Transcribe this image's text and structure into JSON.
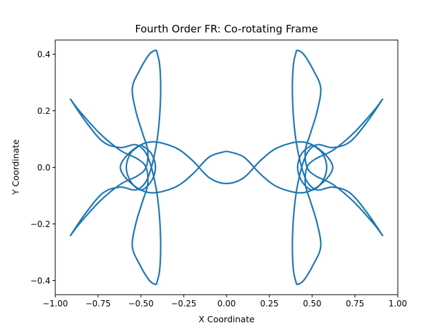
{
  "chart_data": {
    "type": "line",
    "title": "Fourth Order FR: Co-rotating Frame",
    "xlabel": "X Coordinate",
    "ylabel": "Y Coordinate",
    "xlim": [
      -1.0,
      1.0
    ],
    "ylim": [
      -0.45,
      0.45
    ],
    "xticks": [
      -1.0,
      -0.75,
      -0.5,
      -0.25,
      0.0,
      0.25,
      0.5,
      0.75,
      1.0
    ],
    "xtick_labels": [
      "−1.00",
      "−0.75",
      "−0.50",
      "−0.25",
      "0.00",
      "0.25",
      "0.50",
      "0.75",
      "1.00"
    ],
    "yticks": [
      -0.4,
      -0.2,
      0.0,
      0.2,
      0.4
    ],
    "ytick_labels": [
      "−0.4",
      "−0.2",
      "0.0",
      "0.2",
      "0.4"
    ],
    "grid": false,
    "series": [
      {
        "color": "#1f77b4",
        "curves": [
          [
            [
              0.0,
              0.057
            ],
            [
              0.1,
              0.037
            ],
            [
              0.2,
              -0.025
            ],
            [
              0.3,
              -0.07
            ],
            [
              0.44,
              -0.09
            ],
            [
              0.55,
              -0.06
            ],
            [
              0.62,
              0.0
            ],
            [
              0.55,
              0.06
            ],
            [
              0.44,
              0.09
            ],
            [
              0.3,
              0.07
            ],
            [
              0.2,
              0.025
            ],
            [
              0.1,
              -0.037
            ],
            [
              0.0,
              -0.057
            ],
            [
              -0.1,
              -0.037
            ],
            [
              -0.2,
              0.025
            ],
            [
              -0.3,
              0.07
            ],
            [
              -0.44,
              0.09
            ],
            [
              -0.55,
              0.06
            ],
            [
              -0.62,
              0.0
            ],
            [
              -0.55,
              -0.06
            ],
            [
              -0.44,
              -0.09
            ],
            [
              -0.3,
              -0.07
            ],
            [
              -0.2,
              -0.025
            ],
            [
              -0.1,
              0.037
            ],
            [
              0.0,
              0.057
            ]
          ],
          [
            [
              0.5,
              0.08
            ],
            [
              0.56,
              0.05
            ],
            [
              0.585,
              0.0
            ],
            [
              0.56,
              -0.05
            ],
            [
              0.5,
              -0.08
            ],
            [
              0.44,
              -0.05
            ],
            [
              0.415,
              0.0
            ],
            [
              0.44,
              0.05
            ],
            [
              0.5,
              0.08
            ]
          ],
          [
            [
              -0.5,
              0.08
            ],
            [
              -0.44,
              0.05
            ],
            [
              -0.415,
              0.0
            ],
            [
              -0.44,
              -0.05
            ],
            [
              -0.5,
              -0.08
            ],
            [
              -0.56,
              -0.05
            ],
            [
              -0.585,
              0.0
            ],
            [
              -0.56,
              0.05
            ],
            [
              -0.5,
              0.08
            ]
          ],
          [
            [
              0.41,
              0.415
            ],
            [
              0.39,
              0.36
            ],
            [
              0.385,
              0.25
            ],
            [
              0.4,
              0.12
            ],
            [
              0.43,
              0.02
            ],
            [
              0.47,
              -0.05
            ],
            [
              0.53,
              -0.08
            ],
            [
              0.62,
              -0.07
            ],
            [
              0.72,
              -0.09
            ],
            [
              0.82,
              -0.16
            ],
            [
              0.91,
              -0.24
            ],
            [
              0.86,
              -0.2
            ],
            [
              0.74,
              -0.12
            ],
            [
              0.62,
              -0.06
            ],
            [
              0.52,
              -0.03
            ],
            [
              0.47,
              0.0
            ],
            [
              0.46,
              0.06
            ],
            [
              0.49,
              0.12
            ],
            [
              0.53,
              0.2
            ],
            [
              0.55,
              0.28
            ],
            [
              0.51,
              0.34
            ],
            [
              0.45,
              0.4
            ],
            [
              0.41,
              0.415
            ]
          ],
          [
            [
              0.41,
              -0.415
            ],
            [
              0.39,
              -0.36
            ],
            [
              0.385,
              -0.25
            ],
            [
              0.4,
              -0.12
            ],
            [
              0.43,
              -0.02
            ],
            [
              0.47,
              0.05
            ],
            [
              0.53,
              0.08
            ],
            [
              0.62,
              0.07
            ],
            [
              0.72,
              0.09
            ],
            [
              0.82,
              0.16
            ],
            [
              0.91,
              0.24
            ],
            [
              0.86,
              0.2
            ],
            [
              0.74,
              0.12
            ],
            [
              0.62,
              0.06
            ],
            [
              0.52,
              0.03
            ],
            [
              0.47,
              0.0
            ],
            [
              0.46,
              -0.06
            ],
            [
              0.49,
              -0.12
            ],
            [
              0.53,
              -0.2
            ],
            [
              0.55,
              -0.28
            ],
            [
              0.51,
              -0.34
            ],
            [
              0.45,
              -0.4
            ],
            [
              0.41,
              -0.415
            ]
          ],
          [
            [
              -0.41,
              0.415
            ],
            [
              -0.39,
              0.36
            ],
            [
              -0.385,
              0.25
            ],
            [
              -0.4,
              0.12
            ],
            [
              -0.43,
              0.02
            ],
            [
              -0.47,
              -0.05
            ],
            [
              -0.53,
              -0.08
            ],
            [
              -0.62,
              -0.07
            ],
            [
              -0.72,
              -0.09
            ],
            [
              -0.82,
              -0.16
            ],
            [
              -0.91,
              -0.24
            ],
            [
              -0.86,
              -0.2
            ],
            [
              -0.74,
              -0.12
            ],
            [
              -0.62,
              -0.06
            ],
            [
              -0.52,
              -0.03
            ],
            [
              -0.47,
              0.0
            ],
            [
              -0.46,
              0.06
            ],
            [
              -0.49,
              0.12
            ],
            [
              -0.53,
              0.2
            ],
            [
              -0.55,
              0.28
            ],
            [
              -0.51,
              0.34
            ],
            [
              -0.45,
              0.4
            ],
            [
              -0.41,
              0.415
            ]
          ],
          [
            [
              -0.41,
              -0.415
            ],
            [
              -0.39,
              -0.36
            ],
            [
              -0.385,
              -0.25
            ],
            [
              -0.4,
              -0.12
            ],
            [
              -0.43,
              -0.02
            ],
            [
              -0.47,
              0.05
            ],
            [
              -0.53,
              0.08
            ],
            [
              -0.62,
              0.07
            ],
            [
              -0.72,
              0.09
            ],
            [
              -0.82,
              0.16
            ],
            [
              -0.91,
              0.24
            ],
            [
              -0.86,
              0.2
            ],
            [
              -0.74,
              0.12
            ],
            [
              -0.62,
              0.06
            ],
            [
              -0.52,
              0.03
            ],
            [
              -0.47,
              0.0
            ],
            [
              -0.46,
              -0.06
            ],
            [
              -0.49,
              -0.12
            ],
            [
              -0.53,
              -0.2
            ],
            [
              -0.55,
              -0.28
            ],
            [
              -0.51,
              -0.34
            ],
            [
              -0.45,
              -0.4
            ],
            [
              -0.41,
              -0.415
            ]
          ]
        ]
      }
    ]
  }
}
